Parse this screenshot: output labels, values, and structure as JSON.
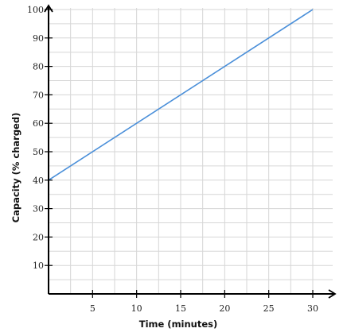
{
  "chart_data": {
    "type": "line",
    "xlabel": "Time (minutes)",
    "ylabel": "Capacity (% charged)",
    "xlim": [
      0,
      31
    ],
    "ylim": [
      0,
      100
    ],
    "x_ticks": [
      5,
      10,
      15,
      20,
      25,
      30
    ],
    "y_ticks": [
      10,
      20,
      30,
      40,
      50,
      60,
      70,
      80,
      90,
      100
    ],
    "x_minor_step": 2.5,
    "y_minor_step": 5,
    "grid": true,
    "series": [
      {
        "x": [
          0,
          30
        ],
        "y": [
          40,
          100
        ],
        "color": "#4a8fd9"
      }
    ]
  },
  "colors": {
    "line": "#4a8fd9",
    "grid": "#d6d6d6",
    "axis": "#000000"
  }
}
